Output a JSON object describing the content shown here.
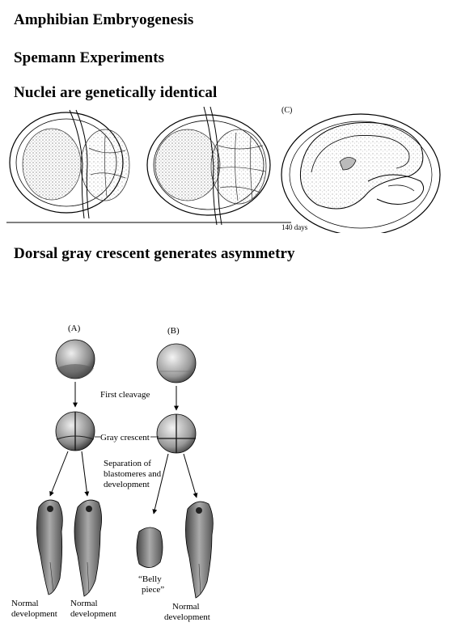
{
  "headings": {
    "title": "Amphibian Embryogenesis",
    "subtitle": "Spemann Experiments",
    "section1": "Nuclei are genetically identical",
    "section2": "Dorsal gray crescent generates asymmetry"
  },
  "figure_top": {
    "panel_label": "(C)",
    "caption_fragment": "140 days"
  },
  "figure_bottom": {
    "panel_a": "(A)",
    "panel_b": "(B)",
    "first_cleavage": "First cleavage",
    "gray_crescent": "Gray crescent",
    "separation_line1": "Separation of",
    "separation_line2": "blastomeres and",
    "separation_line3": "development",
    "normal1_line1": "Normal",
    "normal1_line2": "development",
    "normal2_line1": "Normal",
    "normal2_line2": "development",
    "belly_line1": "“Belly",
    "belly_line2": "piece”",
    "normal3_line1": "Normal",
    "normal3_line2": "development"
  }
}
